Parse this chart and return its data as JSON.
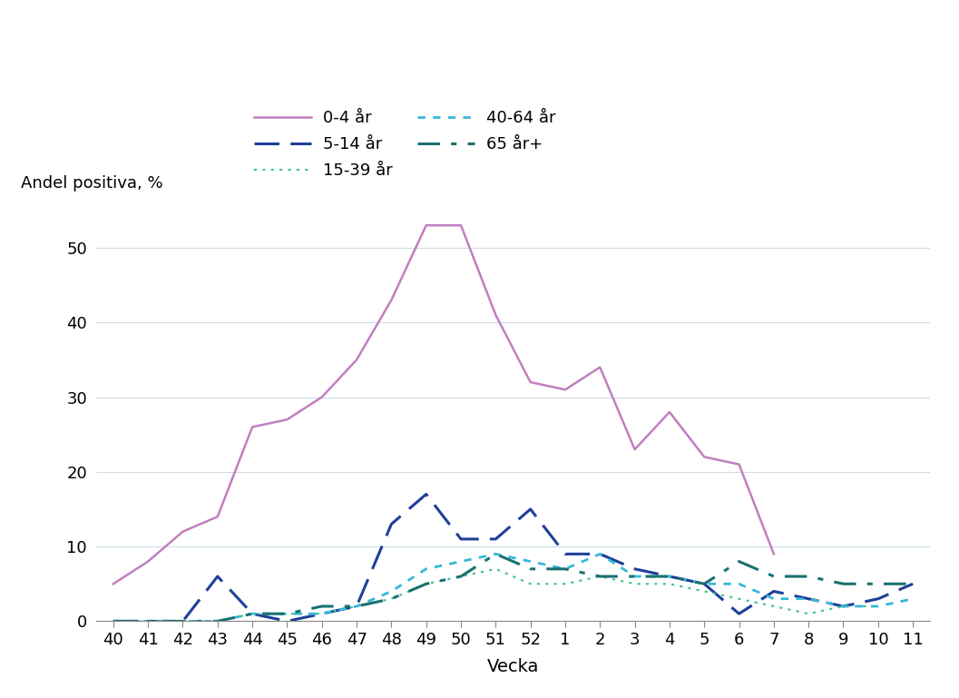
{
  "x_labels": [
    "40",
    "41",
    "42",
    "43",
    "44",
    "45",
    "46",
    "47",
    "48",
    "49",
    "50",
    "51",
    "52",
    "1",
    "2",
    "3",
    "4",
    "5",
    "6",
    "7",
    "8",
    "9",
    "10",
    "11"
  ],
  "series": {
    "0-4 år": [
      5,
      8,
      12,
      14,
      26,
      27,
      30,
      35,
      43,
      53,
      53,
      41,
      32,
      31,
      34,
      23,
      28,
      22,
      21,
      9,
      null,
      null,
      null,
      null
    ],
    "5-14 år": [
      0,
      0,
      0,
      6,
      1,
      0,
      1,
      2,
      13,
      17,
      11,
      11,
      15,
      9,
      9,
      7,
      6,
      5,
      1,
      4,
      3,
      2,
      3,
      5
    ],
    "15-39 år": [
      0,
      0,
      0,
      0,
      1,
      1,
      1,
      2,
      3,
      5,
      6,
      7,
      5,
      5,
      6,
      5,
      5,
      4,
      3,
      2,
      1,
      2,
      2,
      null
    ],
    "40-64 år": [
      0,
      0,
      0,
      0,
      1,
      1,
      1,
      2,
      4,
      7,
      8,
      9,
      8,
      7,
      9,
      6,
      6,
      5,
      5,
      3,
      3,
      2,
      2,
      3
    ],
    "65 år+": [
      0,
      0,
      0,
      0,
      1,
      1,
      2,
      2,
      3,
      5,
      6,
      9,
      7,
      7,
      6,
      6,
      6,
      5,
      8,
      6,
      6,
      5,
      5,
      5
    ]
  },
  "colors": {
    "0-4 år": "#c17fc0",
    "5-14 år": "#1f3f99",
    "15-39 år": "#40c090",
    "40-64 år": "#38b8d8",
    "65 år+": "#1a7070"
  },
  "ylabel": "Andel positiva, %",
  "xlabel": "Vecka",
  "ylim": [
    0,
    57
  ],
  "yticks": [
    0,
    10,
    20,
    30,
    40,
    50
  ],
  "background_color": "#ffffff",
  "grid_color": "#ccdde8"
}
